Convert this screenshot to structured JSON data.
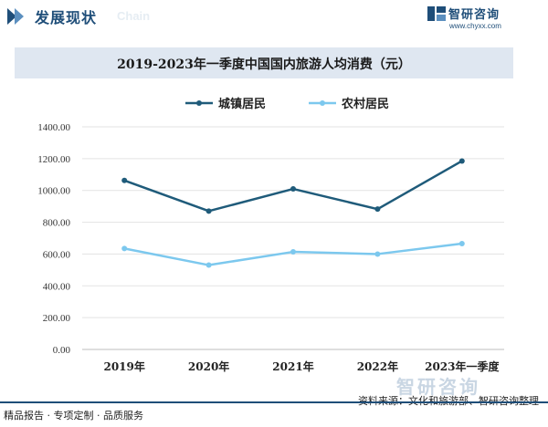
{
  "header": {
    "title": "发展现状",
    "subtitle_en": "Chain",
    "brand_name": "智研咨询",
    "brand_url": "www.chyxx.com"
  },
  "footer": {
    "left": "精品报告 · 专项定制 · 品质服务",
    "source": "资料来源：文化和旅游部、智研咨询整理",
    "brand": "智研咨询"
  },
  "colors": {
    "urban": "#1f5b7a",
    "rural": "#7cc8ee",
    "brand": "#1f4e79",
    "title_bg": "#dfe7f1"
  },
  "chart_data": {
    "type": "line",
    "title": "2019-2023年一季度中国国内旅游人均消费（元）",
    "categories": [
      "2019年",
      "2020年",
      "2021年",
      "2022年",
      "2023年一季度"
    ],
    "series": [
      {
        "name": "城镇居民",
        "values": [
          1062.6,
          870.3,
          1009.6,
          882.7,
          1185.1
        ]
      },
      {
        "name": "农村居民",
        "values": [
          634.7,
          530.5,
          613.6,
          599.9,
          665.4
        ]
      }
    ],
    "y_ticks": [
      "0.00",
      "200.00",
      "400.00",
      "600.00",
      "800.00",
      "1000.00",
      "1200.00",
      "1400.00"
    ],
    "ylim": [
      0,
      1400
    ],
    "grid": true,
    "legend_position": "top-center"
  }
}
